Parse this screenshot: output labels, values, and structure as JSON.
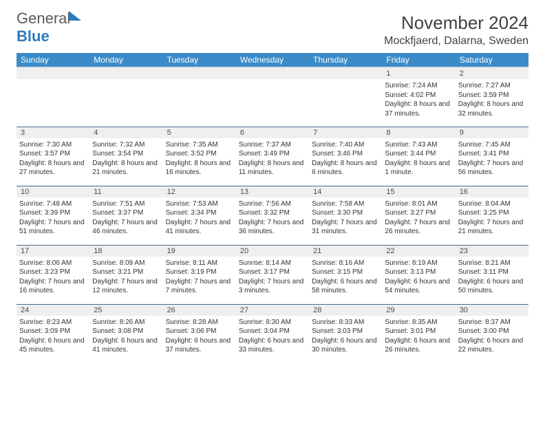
{
  "brand": {
    "part1": "General",
    "part2": "Blue"
  },
  "header": {
    "title": "November 2024",
    "location": "Mockfjaerd, Dalarna, Sweden"
  },
  "colors": {
    "header_bg": "#3b8bc8",
    "header_text": "#ffffff",
    "daynum_bg": "#efefef",
    "row_border": "#4a6a8a",
    "text": "#333333",
    "brand_gray": "#5a5a5a",
    "brand_blue": "#2e7bbf",
    "page_bg": "#ffffff"
  },
  "typography": {
    "title_fontsize": 26,
    "location_fontsize": 16,
    "dayheader_fontsize": 12,
    "daynum_fontsize": 11,
    "cell_fontsize": 10
  },
  "calendar": {
    "type": "table",
    "columns": [
      "Sunday",
      "Monday",
      "Tuesday",
      "Wednesday",
      "Thursday",
      "Friday",
      "Saturday"
    ],
    "weeks": [
      [
        {
          "day": "",
          "sunrise": "",
          "sunset": "",
          "daylight": ""
        },
        {
          "day": "",
          "sunrise": "",
          "sunset": "",
          "daylight": ""
        },
        {
          "day": "",
          "sunrise": "",
          "sunset": "",
          "daylight": ""
        },
        {
          "day": "",
          "sunrise": "",
          "sunset": "",
          "daylight": ""
        },
        {
          "day": "",
          "sunrise": "",
          "sunset": "",
          "daylight": ""
        },
        {
          "day": "1",
          "sunrise": "Sunrise: 7:24 AM",
          "sunset": "Sunset: 4:02 PM",
          "daylight": "Daylight: 8 hours and 37 minutes."
        },
        {
          "day": "2",
          "sunrise": "Sunrise: 7:27 AM",
          "sunset": "Sunset: 3:59 PM",
          "daylight": "Daylight: 8 hours and 32 minutes."
        }
      ],
      [
        {
          "day": "3",
          "sunrise": "Sunrise: 7:30 AM",
          "sunset": "Sunset: 3:57 PM",
          "daylight": "Daylight: 8 hours and 27 minutes."
        },
        {
          "day": "4",
          "sunrise": "Sunrise: 7:32 AM",
          "sunset": "Sunset: 3:54 PM",
          "daylight": "Daylight: 8 hours and 21 minutes."
        },
        {
          "day": "5",
          "sunrise": "Sunrise: 7:35 AM",
          "sunset": "Sunset: 3:52 PM",
          "daylight": "Daylight: 8 hours and 16 minutes."
        },
        {
          "day": "6",
          "sunrise": "Sunrise: 7:37 AM",
          "sunset": "Sunset: 3:49 PM",
          "daylight": "Daylight: 8 hours and 11 minutes."
        },
        {
          "day": "7",
          "sunrise": "Sunrise: 7:40 AM",
          "sunset": "Sunset: 3:46 PM",
          "daylight": "Daylight: 8 hours and 6 minutes."
        },
        {
          "day": "8",
          "sunrise": "Sunrise: 7:43 AM",
          "sunset": "Sunset: 3:44 PM",
          "daylight": "Daylight: 8 hours and 1 minute."
        },
        {
          "day": "9",
          "sunrise": "Sunrise: 7:45 AM",
          "sunset": "Sunset: 3:41 PM",
          "daylight": "Daylight: 7 hours and 56 minutes."
        }
      ],
      [
        {
          "day": "10",
          "sunrise": "Sunrise: 7:48 AM",
          "sunset": "Sunset: 3:39 PM",
          "daylight": "Daylight: 7 hours and 51 minutes."
        },
        {
          "day": "11",
          "sunrise": "Sunrise: 7:51 AM",
          "sunset": "Sunset: 3:37 PM",
          "daylight": "Daylight: 7 hours and 46 minutes."
        },
        {
          "day": "12",
          "sunrise": "Sunrise: 7:53 AM",
          "sunset": "Sunset: 3:34 PM",
          "daylight": "Daylight: 7 hours and 41 minutes."
        },
        {
          "day": "13",
          "sunrise": "Sunrise: 7:56 AM",
          "sunset": "Sunset: 3:32 PM",
          "daylight": "Daylight: 7 hours and 36 minutes."
        },
        {
          "day": "14",
          "sunrise": "Sunrise: 7:58 AM",
          "sunset": "Sunset: 3:30 PM",
          "daylight": "Daylight: 7 hours and 31 minutes."
        },
        {
          "day": "15",
          "sunrise": "Sunrise: 8:01 AM",
          "sunset": "Sunset: 3:27 PM",
          "daylight": "Daylight: 7 hours and 26 minutes."
        },
        {
          "day": "16",
          "sunrise": "Sunrise: 8:04 AM",
          "sunset": "Sunset: 3:25 PM",
          "daylight": "Daylight: 7 hours and 21 minutes."
        }
      ],
      [
        {
          "day": "17",
          "sunrise": "Sunrise: 8:06 AM",
          "sunset": "Sunset: 3:23 PM",
          "daylight": "Daylight: 7 hours and 16 minutes."
        },
        {
          "day": "18",
          "sunrise": "Sunrise: 8:09 AM",
          "sunset": "Sunset: 3:21 PM",
          "daylight": "Daylight: 7 hours and 12 minutes."
        },
        {
          "day": "19",
          "sunrise": "Sunrise: 8:11 AM",
          "sunset": "Sunset: 3:19 PM",
          "daylight": "Daylight: 7 hours and 7 minutes."
        },
        {
          "day": "20",
          "sunrise": "Sunrise: 8:14 AM",
          "sunset": "Sunset: 3:17 PM",
          "daylight": "Daylight: 7 hours and 3 minutes."
        },
        {
          "day": "21",
          "sunrise": "Sunrise: 8:16 AM",
          "sunset": "Sunset: 3:15 PM",
          "daylight": "Daylight: 6 hours and 58 minutes."
        },
        {
          "day": "22",
          "sunrise": "Sunrise: 8:19 AM",
          "sunset": "Sunset: 3:13 PM",
          "daylight": "Daylight: 6 hours and 54 minutes."
        },
        {
          "day": "23",
          "sunrise": "Sunrise: 8:21 AM",
          "sunset": "Sunset: 3:11 PM",
          "daylight": "Daylight: 6 hours and 50 minutes."
        }
      ],
      [
        {
          "day": "24",
          "sunrise": "Sunrise: 8:23 AM",
          "sunset": "Sunset: 3:09 PM",
          "daylight": "Daylight: 6 hours and 45 minutes."
        },
        {
          "day": "25",
          "sunrise": "Sunrise: 8:26 AM",
          "sunset": "Sunset: 3:08 PM",
          "daylight": "Daylight: 6 hours and 41 minutes."
        },
        {
          "day": "26",
          "sunrise": "Sunrise: 8:28 AM",
          "sunset": "Sunset: 3:06 PM",
          "daylight": "Daylight: 6 hours and 37 minutes."
        },
        {
          "day": "27",
          "sunrise": "Sunrise: 8:30 AM",
          "sunset": "Sunset: 3:04 PM",
          "daylight": "Daylight: 6 hours and 33 minutes."
        },
        {
          "day": "28",
          "sunrise": "Sunrise: 8:33 AM",
          "sunset": "Sunset: 3:03 PM",
          "daylight": "Daylight: 6 hours and 30 minutes."
        },
        {
          "day": "29",
          "sunrise": "Sunrise: 8:35 AM",
          "sunset": "Sunset: 3:01 PM",
          "daylight": "Daylight: 6 hours and 26 minutes."
        },
        {
          "day": "30",
          "sunrise": "Sunrise: 8:37 AM",
          "sunset": "Sunset: 3:00 PM",
          "daylight": "Daylight: 6 hours and 22 minutes."
        }
      ]
    ]
  }
}
